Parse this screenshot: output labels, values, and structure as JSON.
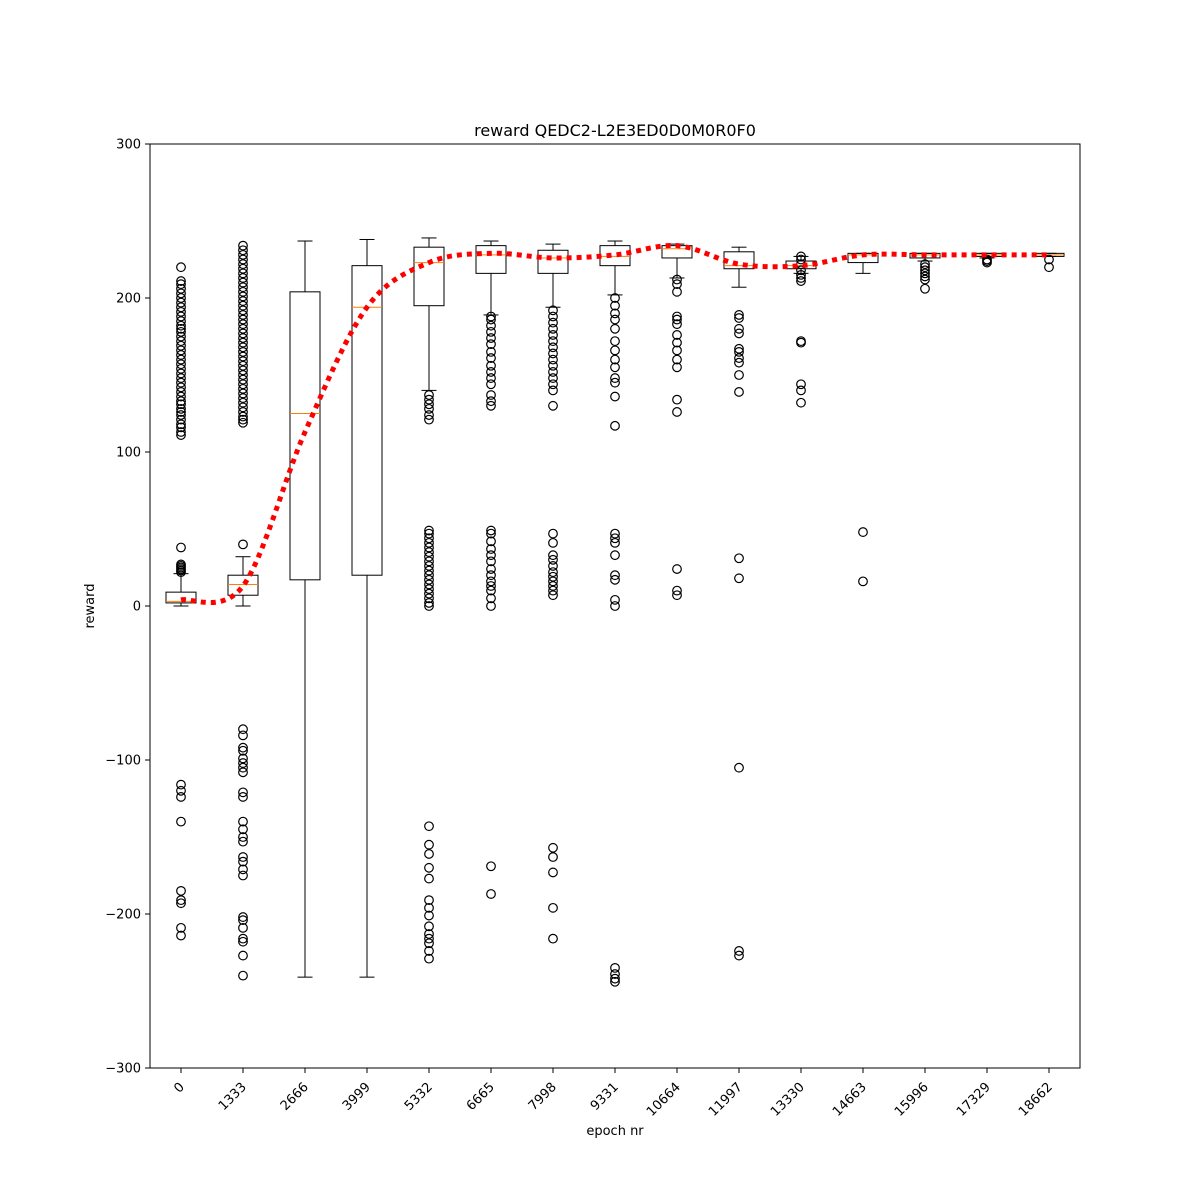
{
  "chart_data": {
    "type": "box",
    "title": "reward QEDC2-L2E3ED0D0M0R0F0",
    "xlabel": "epoch nr",
    "ylabel": "reward",
    "ylim": [
      -300,
      300
    ],
    "yticks": [
      -300,
      -200,
      -100,
      0,
      100,
      200,
      300
    ],
    "ytick_labels": [
      "−300",
      "−200",
      "−100",
      "0",
      "100",
      "200",
      "300"
    ],
    "grid": false,
    "categories": [
      "0",
      "1333",
      "2666",
      "3999",
      "5332",
      "6665",
      "7998",
      "9331",
      "10664",
      "11997",
      "13330",
      "14663",
      "15996",
      "17329",
      "18662"
    ],
    "boxes": [
      {
        "q1": 2,
        "median": 3,
        "q3": 9,
        "whisker_low": 0,
        "whisker_high": 21,
        "outliers": [
          22,
          23,
          24,
          25,
          26,
          27,
          38,
          111,
          113,
          116,
          118,
          121,
          124,
          126,
          128,
          131,
          133,
          136,
          139,
          142,
          145,
          148,
          151,
          154,
          157,
          160,
          163,
          166,
          169,
          172,
          175,
          178,
          180,
          182,
          185,
          188,
          191,
          194,
          197,
          200,
          203,
          206,
          209,
          211,
          220,
          -116,
          -120,
          -124,
          -140,
          -185,
          -191,
          -193,
          -209,
          -214
        ]
      },
      {
        "q1": 7,
        "median": 14,
        "q3": 20,
        "whisker_low": 0,
        "whisker_high": 32,
        "outliers": [
          40,
          119,
          121,
          123,
          126,
          129,
          132,
          135,
          138,
          141,
          144,
          147,
          150,
          153,
          156,
          159,
          162,
          165,
          168,
          171,
          174,
          177,
          180,
          183,
          186,
          189,
          192,
          195,
          198,
          201,
          204,
          207,
          210,
          213,
          216,
          219,
          222,
          225,
          228,
          231,
          234,
          -80,
          -84,
          -92,
          -94,
          -99,
          -102,
          -105,
          -108,
          -121,
          -124,
          -140,
          -145,
          -150,
          -153,
          -163,
          -166,
          -171,
          -175,
          -202,
          -204,
          -209,
          -216,
          -218,
          -227,
          -240
        ]
      },
      {
        "q1": 17,
        "median": 125,
        "q3": 204,
        "whisker_low": -241,
        "whisker_high": 237,
        "outliers": []
      },
      {
        "q1": 20,
        "median": 194,
        "q3": 221,
        "whisker_low": -241,
        "whisker_high": 238,
        "outliers": []
      },
      {
        "q1": 195,
        "median": 223,
        "q3": 233,
        "whisker_low": 140,
        "whisker_high": 239,
        "outliers": [
          121,
          124,
          128,
          131,
          134,
          137,
          0,
          2,
          5,
          8,
          11,
          14,
          17,
          20,
          23,
          26,
          29,
          32,
          35,
          38,
          41,
          44,
          47,
          49,
          -143,
          -155,
          -161,
          -170,
          -177,
          -191,
          -196,
          -201,
          -208,
          -213,
          -216,
          -219,
          -224,
          -229
        ]
      },
      {
        "q1": 216,
        "median": 228,
        "q3": 234,
        "whisker_low": 189,
        "whisker_high": 237,
        "outliers": [
          130,
          133,
          137,
          144,
          148,
          152,
          156,
          161,
          165,
          170,
          174,
          178,
          182,
          186,
          188,
          0,
          5,
          10,
          13,
          16,
          20,
          24,
          29,
          33,
          37,
          42,
          47,
          49,
          -169,
          -187
        ]
      },
      {
        "q1": 216,
        "median": 226,
        "q3": 231,
        "whisker_low": 194,
        "whisker_high": 235,
        "outliers": [
          130,
          140,
          144,
          148,
          152,
          156,
          160,
          164,
          168,
          172,
          176,
          180,
          184,
          188,
          192,
          7,
          10,
          13,
          16,
          19,
          22,
          26,
          30,
          33,
          41,
          47,
          -157,
          -163,
          -173,
          -196,
          -216
        ]
      },
      {
        "q1": 221,
        "median": 227,
        "q3": 234,
        "whisker_low": 202,
        "whisker_high": 237,
        "outliers": [
          117,
          136,
          145,
          148,
          155,
          160,
          166,
          172,
          180,
          186,
          190,
          195,
          200,
          0,
          4,
          17,
          20,
          33,
          41,
          44,
          47,
          -235,
          -239,
          -242,
          -244
        ]
      },
      {
        "q1": 226,
        "median": 232,
        "q3": 234,
        "whisker_low": 213,
        "whisker_high": 235,
        "outliers": [
          126,
          134,
          155,
          160,
          166,
          171,
          176,
          183,
          186,
          188,
          204,
          209,
          212,
          7,
          10,
          24
        ]
      },
      {
        "q1": 219,
        "median": 221,
        "q3": 230,
        "whisker_low": 207,
        "whisker_high": 233,
        "outliers": [
          139,
          150,
          158,
          161,
          165,
          167,
          177,
          180,
          187,
          189,
          18,
          31,
          -105,
          -224,
          -227
        ]
      },
      {
        "q1": 219,
        "median": 221,
        "q3": 224,
        "whisker_low": 216,
        "whisker_high": 227,
        "outliers": [
          132,
          140,
          144,
          171,
          172,
          211,
          213,
          215,
          218,
          222,
          225,
          227
        ]
      },
      {
        "q1": 223,
        "median": 228,
        "q3": 229,
        "whisker_low": 216,
        "whisker_high": 229,
        "outliers": [
          16,
          48
        ]
      },
      {
        "q1": 226,
        "median": 228,
        "q3": 229,
        "whisker_low": 224,
        "whisker_high": 229,
        "outliers": [
          206,
          212,
          214,
          216,
          218,
          220,
          222
        ]
      },
      {
        "q1": 227,
        "median": 228,
        "q3": 229,
        "whisker_low": 226,
        "whisker_high": 229,
        "outliers": [
          223,
          224,
          225
        ]
      },
      {
        "q1": 227,
        "median": 228,
        "q3": 229,
        "whisker_low": 227,
        "whisker_high": 229,
        "outliers": [
          220,
          225
        ]
      }
    ],
    "mean_line": {
      "color": "#ff0000",
      "style": "dotted",
      "values": [
        4,
        13,
        113,
        194,
        223,
        229,
        226,
        228,
        234,
        222,
        221,
        228,
        228,
        228,
        228
      ]
    },
    "colors": {
      "box": "#000000",
      "median": "#ff7f0e",
      "mean": "#ff0000",
      "outlier": "#000000"
    }
  }
}
